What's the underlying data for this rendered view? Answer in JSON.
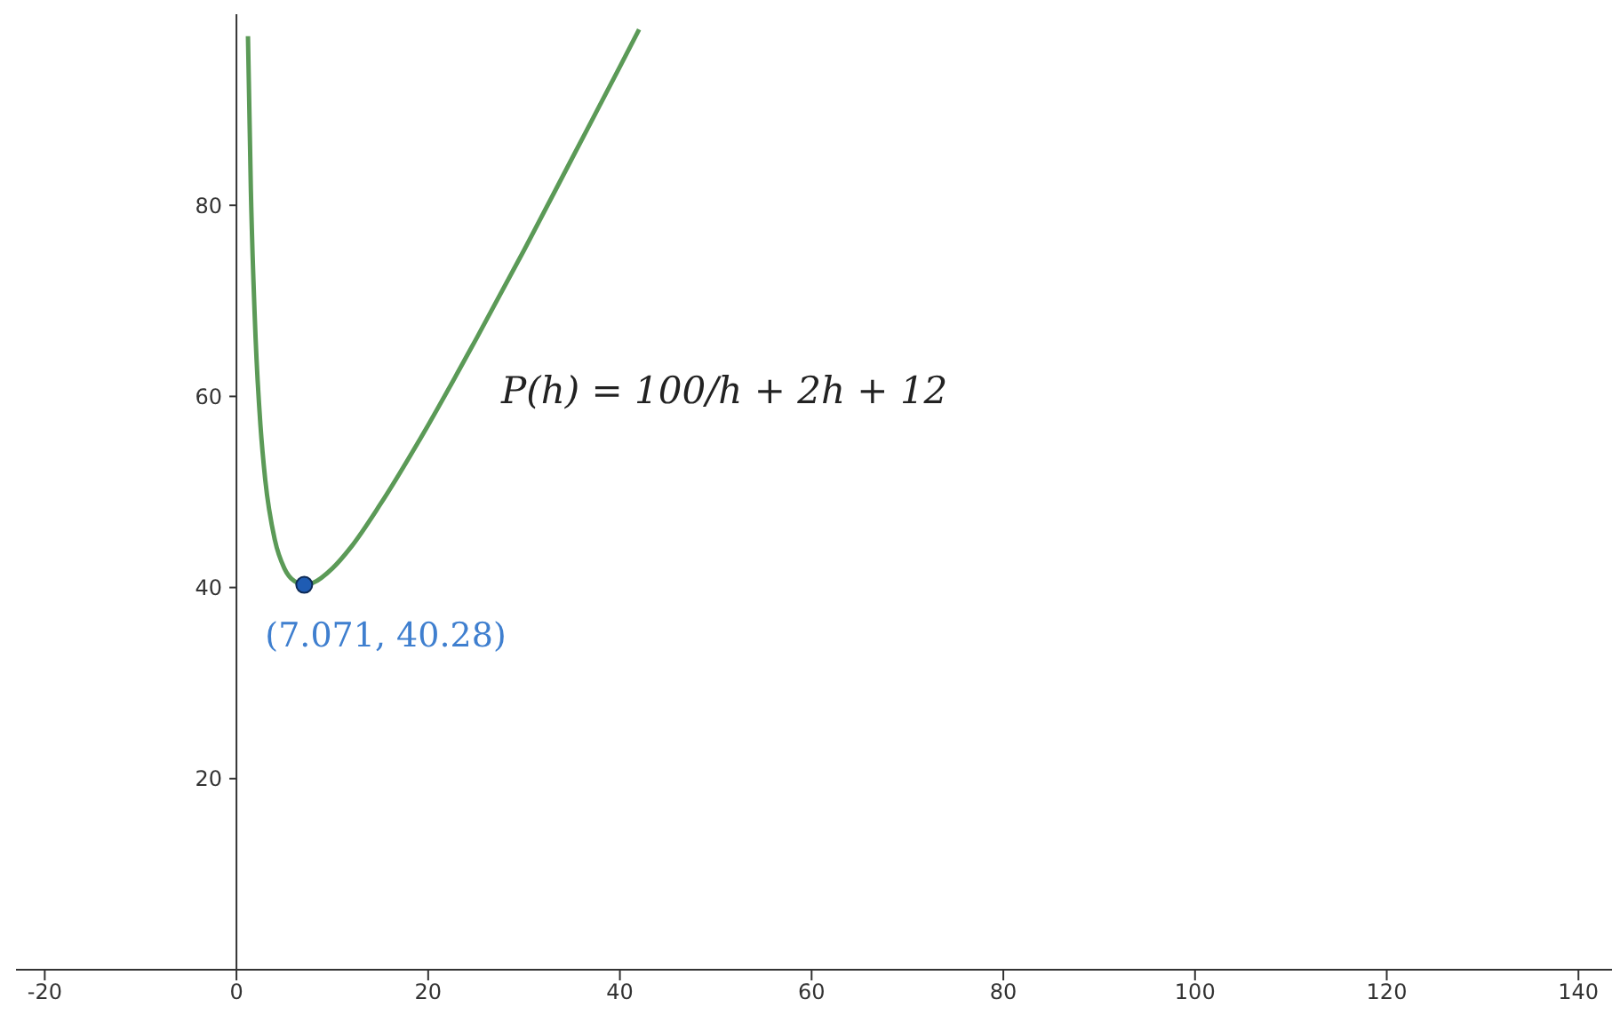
{
  "chart_data": {
    "type": "line",
    "xlim": [
      -23,
      143.5
    ],
    "ylim": [
      0,
      100
    ],
    "xticks": [
      -20,
      0,
      20,
      40,
      60,
      80,
      100,
      120,
      140
    ],
    "yticks": [
      20,
      40,
      60,
      80
    ],
    "annotations": [
      "P(h) = 100/h + 2h + 12"
    ],
    "series": [
      {
        "color": "#5b9a57",
        "marker": "none",
        "x": [
          1.2,
          1.5,
          2,
          2.5,
          3,
          4,
          5,
          6,
          7.1,
          8,
          10,
          12,
          15,
          20,
          25,
          30,
          35,
          40,
          42
        ],
        "values": [
          97.7,
          81.7,
          66,
          57,
          51.3,
          45,
          42,
          40.7,
          40.3,
          40.5,
          42,
          44.3,
          48.7,
          57,
          66,
          75.3,
          84.9,
          94.5,
          98.4
        ]
      },
      {
        "type": "scatter",
        "color": "#1f5cb3",
        "marker": "circle",
        "x": [
          7.071
        ],
        "values": [
          40.28
        ],
        "value_labels": [
          "(7.071, 40.28)"
        ]
      }
    ]
  }
}
